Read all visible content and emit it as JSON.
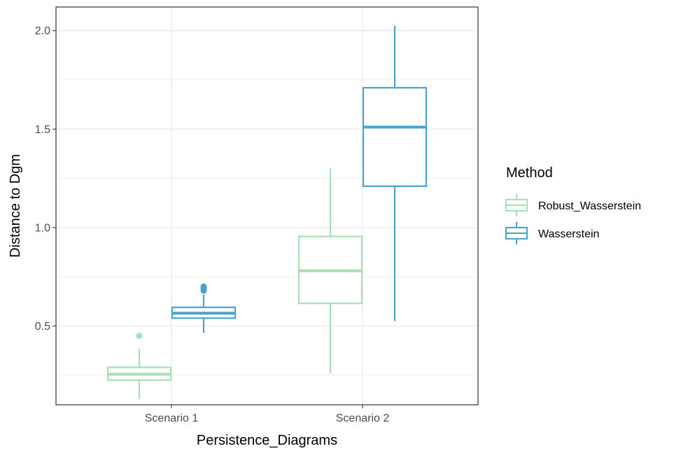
{
  "chart_data": {
    "type": "boxplot",
    "xlabel": "Persistence_Diagrams",
    "ylabel": "Distance to Dgm",
    "categories": [
      "Scenario 1",
      "Scenario 2"
    ],
    "yticks": [
      "0.5",
      "1.0",
      "1.5",
      "2.0"
    ],
    "ylim": [
      0.1,
      2.12
    ],
    "grid": true,
    "legend": {
      "title": "Method",
      "position": "right",
      "entries": [
        "Robust_Wasserstein",
        "Wasserstein"
      ]
    },
    "series": [
      {
        "name": "Robust_Wasserstein",
        "color": "#a8dfb6",
        "boxes": [
          {
            "category": "Scenario 1",
            "min": 0.13,
            "q1": 0.225,
            "median": 0.255,
            "q3": 0.29,
            "max": 0.385,
            "outliers": [
              0.45
            ]
          },
          {
            "category": "Scenario 2",
            "min": 0.26,
            "q1": 0.615,
            "median": 0.78,
            "q3": 0.955,
            "max": 1.3,
            "outliers": []
          }
        ]
      },
      {
        "name": "Wasserstein",
        "color": "#4aa3cc",
        "boxes": [
          {
            "category": "Scenario 1",
            "min": 0.465,
            "q1": 0.54,
            "median": 0.565,
            "q3": 0.595,
            "max": 0.66,
            "outliers": [
              0.68,
              0.69,
              0.7
            ]
          },
          {
            "category": "Scenario 2",
            "min": 0.525,
            "q1": 1.21,
            "median": 1.51,
            "q3": 1.71,
            "max": 2.025,
            "outliers": []
          }
        ]
      }
    ]
  }
}
